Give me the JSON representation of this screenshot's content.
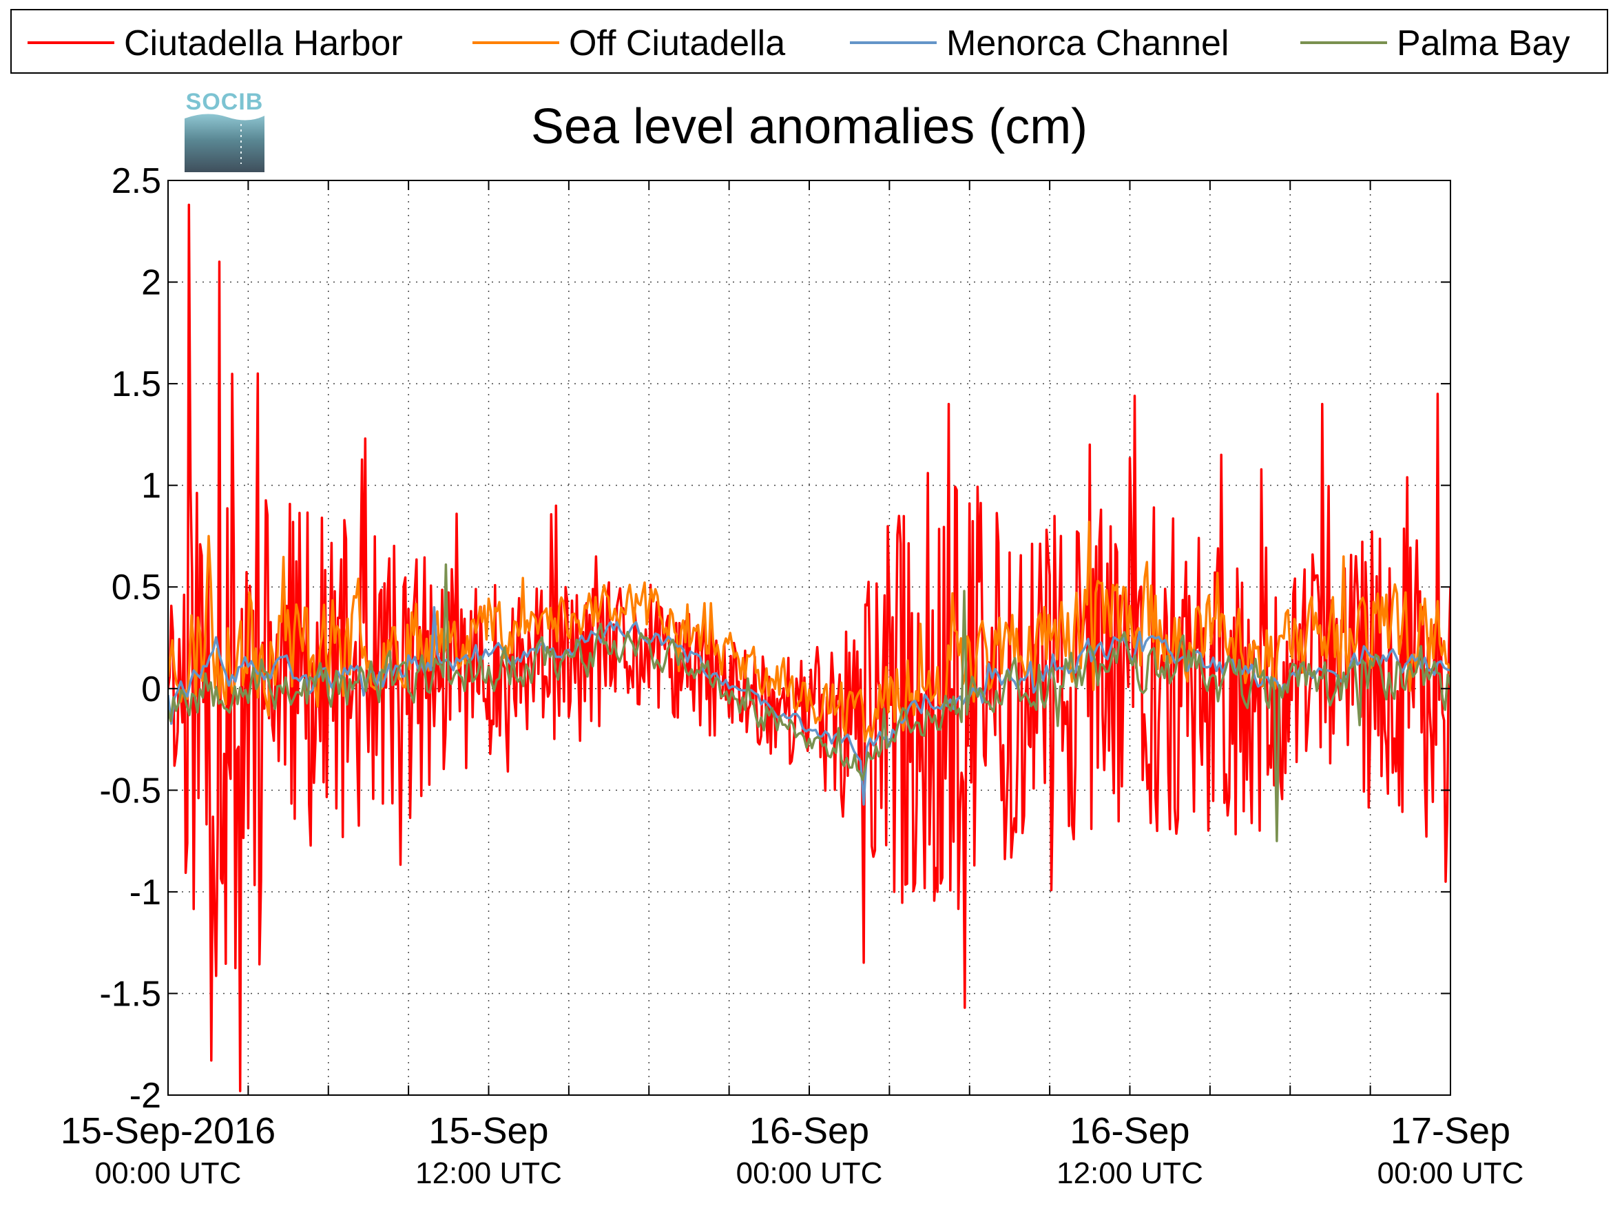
{
  "logo": {
    "text": "SOCIB"
  },
  "chart_data": {
    "type": "line",
    "title": "Sea level anomalies (cm)",
    "xlabel": "",
    "ylabel": "",
    "ylim": [
      -2,
      2.5
    ],
    "yticks": [
      {
        "value": 2.5,
        "label": "2.5"
      },
      {
        "value": 2,
        "label": "2"
      },
      {
        "value": 1.5,
        "label": "1.5"
      },
      {
        "value": 1,
        "label": "1"
      },
      {
        "value": 0.5,
        "label": "0.5"
      },
      {
        "value": 0,
        "label": "0"
      },
      {
        "value": -0.5,
        "label": "-0.5"
      },
      {
        "value": -1,
        "label": "-1"
      },
      {
        "value": -1.5,
        "label": "-1.5"
      },
      {
        "value": -2,
        "label": "-2"
      }
    ],
    "xlim_hours": [
      0,
      48
    ],
    "xticks": [
      {
        "hour": 0,
        "date": "15-Sep-2016",
        "time": "00:00 UTC"
      },
      {
        "hour": 12,
        "date": "15-Sep",
        "time": "12:00 UTC"
      },
      {
        "hour": 24,
        "date": "16-Sep",
        "time": "00:00 UTC"
      },
      {
        "hour": 36,
        "date": "16-Sep",
        "time": "12:00 UTC"
      },
      {
        "hour": 48,
        "date": "17-Sep",
        "time": "00:00 UTC"
      }
    ],
    "minor_tick_hours": [
      3,
      6,
      9,
      15,
      18,
      21,
      27,
      30,
      33,
      39,
      42,
      45
    ],
    "grid": true,
    "legend_position": "top",
    "series": [
      {
        "name": "Ciutadella Harbor",
        "color": "#ff0000",
        "amplitude": [
          [
            0,
            0.35
          ],
          [
            1,
            0.9
          ],
          [
            2,
            1.2
          ],
          [
            3,
            1.0
          ],
          [
            4,
            0.6
          ],
          [
            6,
            0.6
          ],
          [
            9,
            0.45
          ],
          [
            12,
            0.3
          ],
          [
            15,
            0.3
          ],
          [
            18,
            0.22
          ],
          [
            21,
            0.2
          ],
          [
            24,
            0.2
          ],
          [
            26,
            0.5
          ],
          [
            28,
            0.85
          ],
          [
            30,
            0.75
          ],
          [
            33,
            0.6
          ],
          [
            36,
            0.55
          ],
          [
            39,
            0.6
          ],
          [
            42,
            0.45
          ],
          [
            45,
            0.5
          ],
          [
            48,
            0.6
          ]
        ],
        "points": [
          [
            0,
            0.0
          ],
          [
            0.8,
            2.38
          ],
          [
            1.6,
            -1.83
          ],
          [
            1.9,
            2.1
          ],
          [
            2.7,
            -1.98
          ],
          [
            3.35,
            1.55
          ],
          [
            7.4,
            1.23
          ],
          [
            10.8,
            0.86
          ],
          [
            14.5,
            0.9
          ],
          [
            16,
            0.65
          ],
          [
            24,
            -0.1
          ],
          [
            27.2,
            -1.0
          ],
          [
            29.2,
            1.4
          ],
          [
            29.8,
            -1.57
          ],
          [
            34.5,
            1.2
          ],
          [
            36.2,
            1.44
          ],
          [
            37,
            -0.7
          ],
          [
            39.4,
            1.15
          ],
          [
            43.2,
            1.4
          ],
          [
            47.5,
            1.45
          ],
          [
            47.8,
            -0.95
          ],
          [
            48,
            0.5
          ]
        ]
      },
      {
        "name": "Off Ciutadella",
        "color": "#ff8000",
        "amplitude": [
          [
            0,
            0.2
          ],
          [
            2,
            0.35
          ],
          [
            6,
            0.25
          ],
          [
            12,
            0.15
          ],
          [
            18,
            0.12
          ],
          [
            24,
            0.12
          ],
          [
            27,
            0.18
          ],
          [
            30,
            0.2
          ],
          [
            36,
            0.25
          ],
          [
            42,
            0.2
          ],
          [
            48,
            0.2
          ]
        ],
        "points": [
          [
            1.5,
            0.75
          ],
          [
            10,
            0.3
          ],
          [
            16,
            0.45
          ],
          [
            34.5,
            0.82
          ],
          [
            44,
            0.65
          ]
        ]
      },
      {
        "name": "Menorca Channel",
        "color": "#6495c8",
        "amplitude": [
          [
            0,
            0.1
          ],
          [
            6,
            0.08
          ],
          [
            12,
            0.07
          ],
          [
            24,
            0.05
          ],
          [
            30,
            0.08
          ],
          [
            36,
            0.1
          ],
          [
            42,
            0.08
          ],
          [
            48,
            0.08
          ]
        ],
        "points": [
          [
            9.9,
            0.4
          ],
          [
            26.1,
            -0.57
          ]
        ]
      },
      {
        "name": "Palma Bay",
        "color": "#7a9150",
        "amplitude": [
          [
            0,
            0.15
          ],
          [
            6,
            0.15
          ],
          [
            12,
            0.12
          ],
          [
            18,
            0.1
          ],
          [
            24,
            0.08
          ],
          [
            30,
            0.12
          ],
          [
            36,
            0.15
          ],
          [
            42,
            0.15
          ],
          [
            48,
            0.18
          ]
        ],
        "points": [
          [
            10.4,
            0.61
          ],
          [
            29.8,
            0.48
          ],
          [
            41.5,
            -0.75
          ]
        ]
      }
    ]
  }
}
